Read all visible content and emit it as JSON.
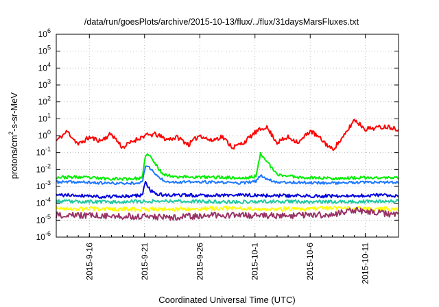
{
  "chart_data": {
    "type": "line",
    "title": "/data/run/goesPlots/archive/2015-10-13/flux/../flux/31daysMarsFluxes.txt",
    "xlabel": "Coordinated Universal Time (UTC)",
    "ylabel": "protons/cm2-s-sr-MeV",
    "yscale": "log",
    "ylim": [
      1e-06,
      1000000.0
    ],
    "xlim": [
      "2015-09-13",
      "2015-10-14"
    ],
    "grid": true,
    "y_ticks": [
      {
        "base": "10",
        "exp": "-6",
        "value": 1e-06
      },
      {
        "base": "10",
        "exp": "-5",
        "value": 1e-05
      },
      {
        "base": "10",
        "exp": "-4",
        "value": 0.0001
      },
      {
        "base": "10",
        "exp": "-3",
        "value": 0.001
      },
      {
        "base": "10",
        "exp": "-2",
        "value": 0.01
      },
      {
        "base": "10",
        "exp": "-1",
        "value": 0.1
      },
      {
        "base": "10",
        "exp": "0",
        "value": 1
      },
      {
        "base": "10",
        "exp": "1",
        "value": 10
      },
      {
        "base": "10",
        "exp": "2",
        "value": 100
      },
      {
        "base": "10",
        "exp": "3",
        "value": 1000
      },
      {
        "base": "10",
        "exp": "4",
        "value": 10000
      },
      {
        "base": "10",
        "exp": "5",
        "value": 100000
      },
      {
        "base": "10",
        "exp": "6",
        "value": 1000000
      }
    ],
    "x_ticks": [
      "2015-9-16",
      "2015-9-21",
      "2015-9-26",
      "2015-10-1",
      "2015-10-6",
      "2015-10-11"
    ],
    "x_tick_dates": [
      "2015-09-16",
      "2015-09-21",
      "2015-09-26",
      "2015-10-01",
      "2015-10-06",
      "2015-10-11"
    ],
    "series": [
      {
        "color": "#ff0000",
        "noise": 0.14,
        "seed": 11,
        "x": [
          "2015-09-13",
          "2015-09-14",
          "2015-09-15",
          "2015-09-16",
          "2015-09-17",
          "2015-09-18",
          "2015-09-19",
          "2015-09-20",
          "2015-09-21",
          "2015-09-22",
          "2015-09-23",
          "2015-09-24",
          "2015-09-25",
          "2015-09-26",
          "2015-09-27",
          "2015-09-28",
          "2015-09-29",
          "2015-09-30",
          "2015-10-01",
          "2015-10-02",
          "2015-10-03",
          "2015-10-04",
          "2015-10-05",
          "2015-10-06",
          "2015-10-07",
          "2015-10-08",
          "2015-10-09",
          "2015-10-10",
          "2015-10-11",
          "2015-10-12",
          "2015-10-13",
          "2015-10-14"
        ],
        "y": [
          0.5,
          1.8,
          0.3,
          0.8,
          0.5,
          1.3,
          0.2,
          0.5,
          1.0,
          1.2,
          0.6,
          0.8,
          0.3,
          1.1,
          0.5,
          0.9,
          0.2,
          0.4,
          1.5,
          3.5,
          0.4,
          0.8,
          0.4,
          2.0,
          0.6,
          0.15,
          0.8,
          9.0,
          2.5,
          3.0,
          3.5,
          2.5
        ]
      },
      {
        "color": "#00ee00",
        "noise": 0.09,
        "seed": 23,
        "x": [
          "2015-09-13",
          "2015-09-15",
          "2015-09-17",
          "2015-09-19",
          "2015-09-20.8",
          "2015-09-21.1",
          "2015-09-21.5",
          "2015-09-22",
          "2015-09-22.5",
          "2015-09-23",
          "2015-09-24",
          "2015-09-26",
          "2015-09-28",
          "2015-09-30",
          "2015-10-01.1",
          "2015-10-01.5",
          "2015-10-02",
          "2015-10-02.5",
          "2015-10-03",
          "2015-10-05",
          "2015-10-08",
          "2015-10-11",
          "2015-10-14"
        ],
        "y": [
          0.0035,
          0.0035,
          0.003,
          0.0028,
          0.003,
          0.085,
          0.06,
          0.02,
          0.007,
          0.0045,
          0.0038,
          0.0035,
          0.0035,
          0.003,
          0.004,
          0.085,
          0.04,
          0.012,
          0.005,
          0.0035,
          0.003,
          0.0032,
          0.0032
        ]
      },
      {
        "color": "#1e78ff",
        "noise": 0.08,
        "seed": 37,
        "x": [
          "2015-09-13",
          "2015-09-15",
          "2015-09-17",
          "2015-09-19",
          "2015-09-20.8",
          "2015-09-21.1",
          "2015-09-21.5",
          "2015-09-22",
          "2015-09-22.5",
          "2015-09-23",
          "2015-09-24",
          "2015-09-26",
          "2015-09-28",
          "2015-09-30",
          "2015-10-01.1",
          "2015-10-01.5",
          "2015-10-02",
          "2015-10-02.5",
          "2015-10-03",
          "2015-10-05",
          "2015-10-08",
          "2015-10-11",
          "2015-10-14"
        ],
        "y": [
          0.0018,
          0.0018,
          0.0016,
          0.0015,
          0.0017,
          0.02,
          0.012,
          0.005,
          0.0028,
          0.002,
          0.0018,
          0.0018,
          0.0017,
          0.0016,
          0.002,
          0.0045,
          0.003,
          0.0022,
          0.0018,
          0.0017,
          0.0016,
          0.0017,
          0.0017
        ]
      },
      {
        "color": "#0000dd",
        "noise": 0.1,
        "seed": 41,
        "x": [
          "2015-09-13",
          "2015-09-15",
          "2015-09-17",
          "2015-09-19",
          "2015-09-20.8",
          "2015-09-21.05",
          "2015-09-21.5",
          "2015-09-22",
          "2015-09-23",
          "2015-09-26",
          "2015-09-30",
          "2015-10-03",
          "2015-10-06",
          "2015-10-09",
          "2015-10-12",
          "2015-10-14"
        ],
        "y": [
          0.0003,
          0.0003,
          0.00025,
          0.00025,
          0.0003,
          0.002,
          0.0006,
          0.00035,
          0.0003,
          0.0003,
          0.0003,
          0.00028,
          0.00028,
          0.00026,
          0.0003,
          0.00028
        ]
      },
      {
        "color": "#20c8a0",
        "noise": 0.1,
        "seed": 53,
        "x": [
          "2015-09-13",
          "2015-09-18",
          "2015-09-23",
          "2015-09-28",
          "2015-10-03",
          "2015-10-08",
          "2015-10-14"
        ],
        "y": [
          0.00013,
          0.00012,
          0.00014,
          0.00012,
          0.00013,
          0.00012,
          0.00013
        ]
      },
      {
        "color": "#ffff00",
        "noise": 0.12,
        "seed": 67,
        "x": [
          "2015-09-13",
          "2015-09-18",
          "2015-09-23",
          "2015-09-28",
          "2015-10-03",
          "2015-10-08",
          "2015-10-14"
        ],
        "y": [
          5e-05,
          4.5e-05,
          4.5e-05,
          5e-05,
          4.5e-05,
          5e-05,
          4.5e-05
        ]
      },
      {
        "color": "#993366",
        "noise": 0.18,
        "seed": 79,
        "x": [
          "2015-09-13",
          "2015-09-18",
          "2015-09-23",
          "2015-09-28",
          "2015-10-03",
          "2015-10-08",
          "2015-10-10",
          "2015-10-14"
        ],
        "y": [
          2e-05,
          1.8e-05,
          1.5e-05,
          2e-05,
          1.8e-05,
          2.2e-05,
          4e-05,
          2e-05
        ]
      }
    ]
  }
}
